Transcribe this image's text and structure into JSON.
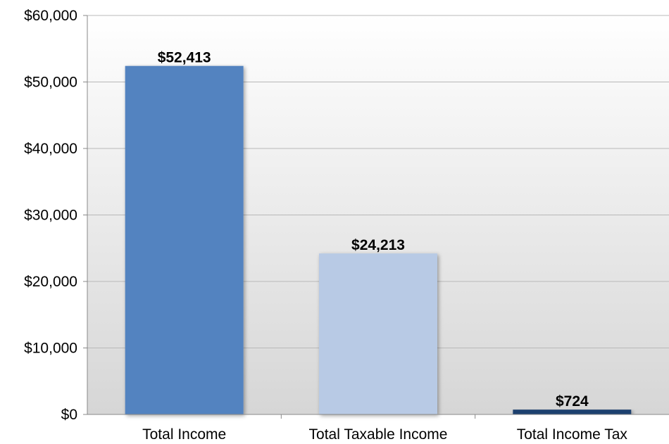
{
  "chart_data": {
    "type": "bar",
    "categories": [
      "Total Income",
      "Total Taxable Income",
      "Total Income Tax"
    ],
    "values": [
      52413,
      24213,
      724
    ],
    "data_labels": [
      "$52,413",
      "$24,213",
      "$724"
    ],
    "colors": [
      "#5383c0",
      "#b8cae5",
      "#1f3f6e"
    ],
    "y_ticks": [
      0,
      10000,
      20000,
      30000,
      40000,
      50000,
      60000
    ],
    "y_tick_labels": [
      "$0",
      "$10,000",
      "$20,000",
      "$30,000",
      "$40,000",
      "$50,000",
      "$60,000"
    ],
    "ylim": [
      0,
      60000
    ],
    "grid": true,
    "legend": "none",
    "title": "",
    "xlabel": "",
    "ylabel": ""
  }
}
